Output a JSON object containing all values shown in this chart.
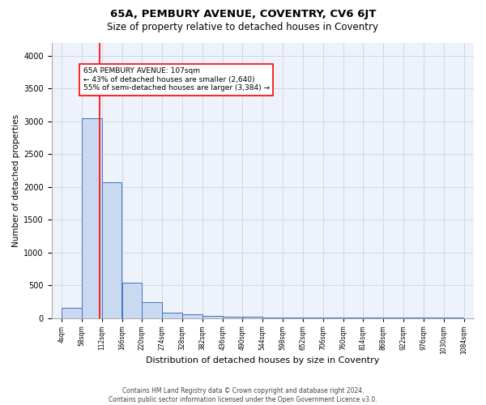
{
  "title1": "65A, PEMBURY AVENUE, COVENTRY, CV6 6JT",
  "title2": "Size of property relative to detached houses in Coventry",
  "xlabel": "Distribution of detached houses by size in Coventry",
  "ylabel": "Number of detached properties",
  "bin_edges": [
    4,
    58,
    112,
    166,
    220,
    274,
    328,
    382,
    436,
    490,
    544,
    598,
    652,
    706,
    760,
    814,
    868,
    922,
    976,
    1030,
    1084
  ],
  "bar_heights": [
    150,
    3050,
    2070,
    540,
    240,
    80,
    55,
    30,
    20,
    15,
    8,
    5,
    5,
    5,
    5,
    5,
    5,
    5,
    5,
    5
  ],
  "bar_color": "#c9d9f0",
  "bar_edge_color": "#4472c4",
  "grid_color": "#d0d8e8",
  "background_color": "#eef2fa",
  "red_line_x": 107,
  "annotation_text": "65A PEMBURY AVENUE: 107sqm\n← 43% of detached houses are smaller (2,640)\n55% of semi-detached houses are larger (3,384) →",
  "ylim": [
    0,
    4200
  ],
  "tick_labels": [
    "4sqm",
    "58sqm",
    "112sqm",
    "166sqm",
    "220sqm",
    "274sqm",
    "328sqm",
    "382sqm",
    "436sqm",
    "490sqm",
    "544sqm",
    "598sqm",
    "652sqm",
    "706sqm",
    "760sqm",
    "814sqm",
    "868sqm",
    "922sqm",
    "976sqm",
    "1030sqm",
    "1084sqm"
  ],
  "footer": "Contains HM Land Registry data © Crown copyright and database right 2024.\nContains public sector information licensed under the Open Government Licence v3.0.",
  "title1_fontsize": 9.5,
  "title2_fontsize": 8.5,
  "ylabel_fontsize": 7.5,
  "xlabel_fontsize": 8,
  "tick_fontsize": 5.5,
  "ytick_fontsize": 7,
  "annotation_fontsize": 6.5,
  "footer_fontsize": 5.5
}
